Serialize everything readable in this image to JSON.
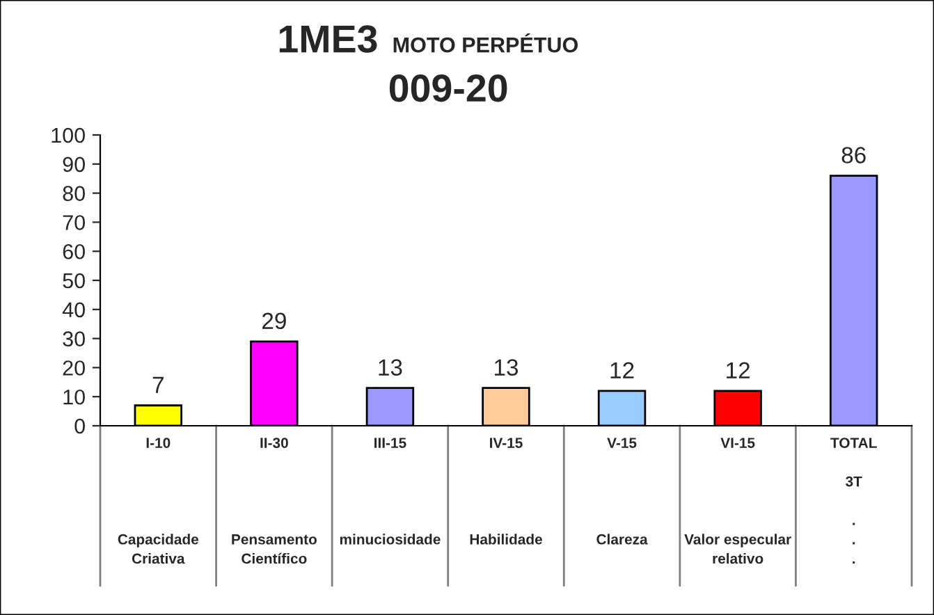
{
  "chart_data": {
    "type": "bar",
    "title": "1ME3",
    "subtitle": "MOTO PERPÉTUO",
    "annotations": [
      "009-20"
    ],
    "categories": [
      "I-10\n\n\n\n\nCapacidade\nCriativa",
      "II-30\n\n\n\n\nPensamento\nCientífico",
      "III-15\n\n\n\n\nminuciosidade",
      "IV-15\n\n\n\n\nHabilidade",
      "V-15\n\n\n\n\nClareza",
      "VI-15\n\n\n\n\nValor especular\nrelativo",
      "TOTAL\n\n3T\n\n.\n.\n."
    ],
    "values": [
      7,
      29,
      13,
      13,
      12,
      12,
      86
    ],
    "colors": [
      "#ffff00",
      "#ff00ff",
      "#9999ff",
      "#ffcc99",
      "#99ccff",
      "#ff0000",
      "#9999ff"
    ],
    "ylim": [
      0,
      100
    ],
    "yticks": [
      0,
      10,
      20,
      30,
      40,
      50,
      60,
      70,
      80,
      90,
      100
    ],
    "data_labels": true,
    "grid": false,
    "legend": false
  }
}
